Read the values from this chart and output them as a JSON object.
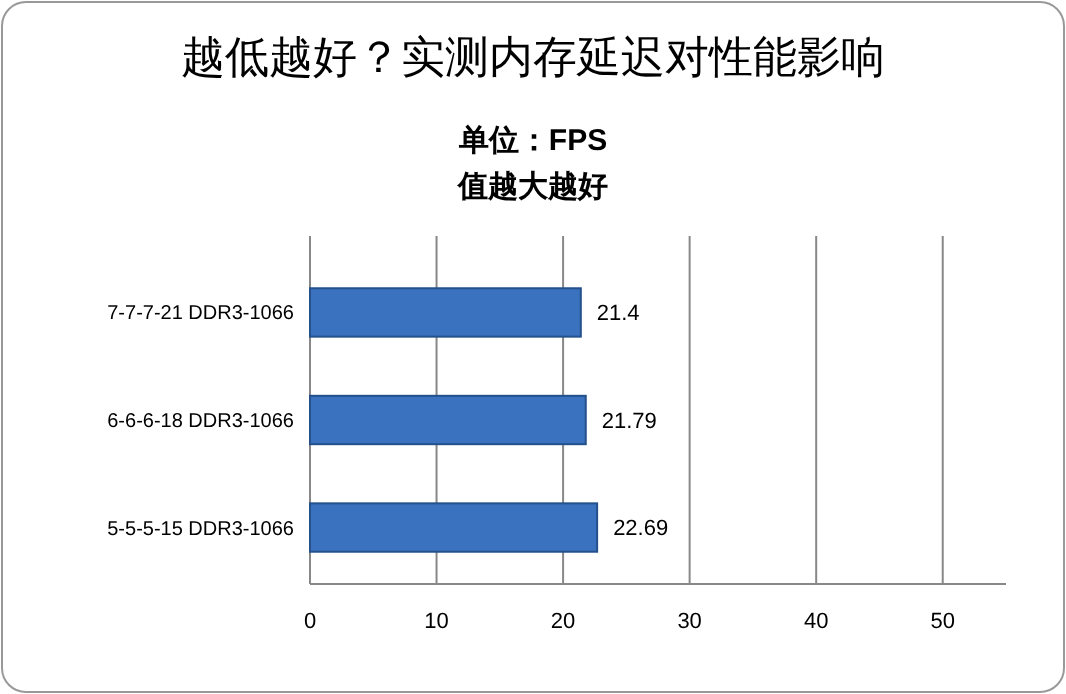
{
  "chart_data": {
    "type": "bar",
    "orientation": "horizontal",
    "title": "越低越好？实测内存延迟对性能影响",
    "subtitle": "单位：FPS",
    "annotations": [
      "值越大越好"
    ],
    "categories": [
      "7-7-7-21 DDR3-1066",
      "6-6-6-18 DDR3-1066",
      "5-5-5-15 DDR3-1066"
    ],
    "values": [
      21.4,
      21.79,
      22.69
    ],
    "color": "#3a72bf",
    "xlim": [
      0,
      55
    ],
    "xticks": [
      0,
      10,
      20,
      30,
      40,
      50
    ],
    "grid": "x",
    "data_labels": true
  }
}
